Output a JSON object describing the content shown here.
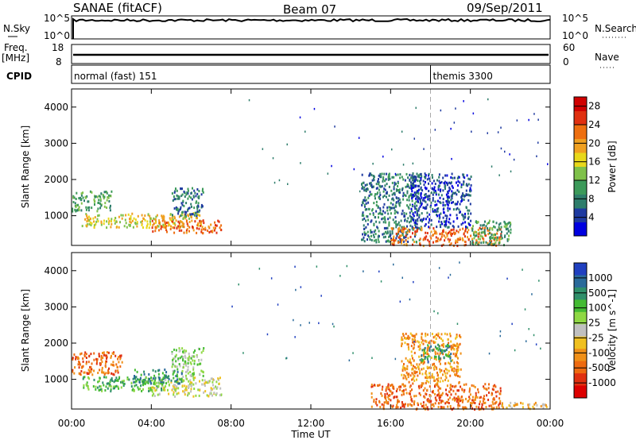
{
  "header": {
    "title": "SANAE (fitACF)",
    "beam": "Beam 07",
    "date": "09/Sep/2011"
  },
  "strip_labels": {
    "nsky": "N.Sky",
    "nsearch": "N.Search",
    "freq": "Freq.",
    "freq_unit": "[MHz]",
    "nave": "Nave",
    "cpid": "CPID",
    "nsky_ticks": [
      "10^5",
      "10^0"
    ],
    "nsearch_ticks": [
      "10^5",
      "10^0"
    ],
    "freq_ticks": [
      "18",
      "8"
    ],
    "nave_ticks": [
      "60",
      "0"
    ]
  },
  "cpid_modes": [
    {
      "label": "normal (fast) 151",
      "start_hour": 0
    },
    {
      "label": "themis 3300",
      "start_hour": 18
    }
  ],
  "colors": {
    "power": [
      "#0000e0",
      "#1e3aa0",
      "#2e7d6b",
      "#3c9a5a",
      "#7fc14a",
      "#e8d81a",
      "#f0a020",
      "#ee6f10",
      "#e03010",
      "#d00000"
    ],
    "velocity": [
      "#2040c0",
      "#2a6a9a",
      "#2f8f6a",
      "#44bb33",
      "#8fd844",
      "#c0c0c0",
      "#f0c020",
      "#f09018",
      "#ee6a10",
      "#e03010",
      "#dd0000"
    ]
  },
  "chart_data": [
    {
      "type": "heatmap",
      "name": "power",
      "ylabel": "Slant Range [km]",
      "yticks": [
        1000,
        2000,
        3000,
        4000
      ],
      "ylim": [
        180,
        4500
      ],
      "xlim": [
        0,
        24
      ],
      "colorbar_label": "Power [dB]",
      "colorbar_ticks": [
        4,
        8,
        12,
        16,
        20,
        24,
        28
      ],
      "colorbar_range": [
        0,
        30
      ],
      "regions": [
        {
          "t0": 0.0,
          "t1": 2.0,
          "r0": 1150,
          "r1": 1700,
          "level": 3
        },
        {
          "t0": 0.5,
          "t1": 6.5,
          "r0": 700,
          "r1": 1100,
          "level": 5
        },
        {
          "t0": 4.0,
          "t1": 7.5,
          "r0": 550,
          "r1": 900,
          "level": 7
        },
        {
          "t0": 5.0,
          "t1": 6.6,
          "r0": 1000,
          "r1": 1800,
          "level": 2
        },
        {
          "t0": 14.5,
          "t1": 17.5,
          "r0": 300,
          "r1": 2200,
          "level": 2
        },
        {
          "t0": 16.0,
          "t1": 21.5,
          "r0": 200,
          "r1": 700,
          "level": 7
        },
        {
          "t0": 17.0,
          "t1": 20.0,
          "r0": 700,
          "r1": 2200,
          "level": 1
        },
        {
          "t0": 20.0,
          "t1": 22.0,
          "r0": 200,
          "r1": 900,
          "level": 3
        }
      ]
    },
    {
      "type": "heatmap",
      "name": "velocity",
      "ylabel": "Slant Range [km]",
      "yticks": [
        1000,
        2000,
        3000,
        4000
      ],
      "ylim": [
        180,
        4500
      ],
      "xlim": [
        0,
        24
      ],
      "xticks": [
        "00:00",
        "04:00",
        "08:00",
        "12:00",
        "16:00",
        "20:00",
        "00:00"
      ],
      "xlabel": "Time UT",
      "colorbar_label": "Velocity [m s^-1]",
      "colorbar_ticks": [
        "1000",
        "500",
        "100",
        "25",
        "-25",
        "-100",
        "-500",
        "-1000"
      ],
      "regions": [
        {
          "t0": 0.0,
          "t1": 2.5,
          "r0": 1150,
          "r1": 1800,
          "level": 8
        },
        {
          "t0": 0.5,
          "t1": 4.5,
          "r0": 700,
          "r1": 1100,
          "level": 3
        },
        {
          "t0": 4.0,
          "t1": 7.5,
          "r0": 550,
          "r1": 1100,
          "level": 5
        },
        {
          "t0": 3.0,
          "t1": 5.5,
          "r0": 900,
          "r1": 1300,
          "level": 2
        },
        {
          "t0": 5.0,
          "t1": 6.6,
          "r0": 1100,
          "r1": 1900,
          "level": 4
        },
        {
          "t0": 15.0,
          "t1": 21.5,
          "r0": 200,
          "r1": 900,
          "level": 8
        },
        {
          "t0": 16.5,
          "t1": 19.5,
          "r0": 900,
          "r1": 2300,
          "level": 7
        },
        {
          "t0": 17.5,
          "t1": 19.0,
          "r0": 1500,
          "r1": 2000,
          "level": 2
        },
        {
          "t0": 21.5,
          "t1": 23.8,
          "r0": 200,
          "r1": 400,
          "level": 6
        }
      ]
    }
  ]
}
